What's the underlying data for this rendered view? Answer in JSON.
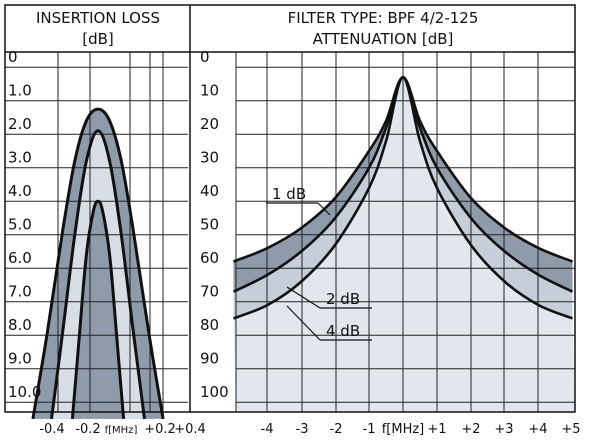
{
  "chart_data": [
    {
      "type": "area",
      "title": "INSERTION LOSS",
      "ylabel_unit": "[dB]",
      "xlabel": "f[MHz]",
      "yticks": [
        "0",
        "1.0",
        "2.0",
        "3.0",
        "4.0",
        "5.0",
        "6.0",
        "7.0",
        "8.0",
        "9.0",
        "10.0"
      ],
      "xticks": [
        "-0.4",
        "-0.2",
        "+0.2",
        "+0.4"
      ],
      "ylim": [
        0,
        10.5
      ],
      "xlim": [
        -0.4,
        0.4
      ],
      "y_inverted": true,
      "series": [
        {
          "x": [
            -0.28,
            -0.22,
            -0.15,
            -0.1,
            -0.05,
            0.0,
            0.05,
            0.1,
            0.15,
            0.22,
            0.28
          ],
          "y": [
            10.5,
            8.0,
            4.8,
            2.8,
            1.6,
            1.25,
            1.6,
            2.8,
            4.8,
            8.0,
            10.5
          ]
        },
        {
          "x": [
            -0.2,
            -0.15,
            -0.1,
            -0.05,
            0.0,
            0.05,
            0.1,
            0.15,
            0.2
          ],
          "y": [
            10.5,
            7.8,
            5.0,
            2.8,
            1.9,
            2.8,
            5.0,
            7.8,
            10.5
          ]
        },
        {
          "x": [
            -0.11,
            -0.08,
            -0.05,
            -0.02,
            0.0,
            0.02,
            0.05,
            0.08,
            0.11
          ],
          "y": [
            10.5,
            8.0,
            5.6,
            4.3,
            4.0,
            4.3,
            5.6,
            8.0,
            10.5
          ]
        }
      ]
    },
    {
      "type": "area",
      "title": "FILTER TYPE: BPF 4/2-125",
      "ylabel": "ATTENUATION [dB]",
      "xlabel": "f[MHz]",
      "yticks": [
        "0",
        "10",
        "20",
        "30",
        "40",
        "50",
        "60",
        "70",
        "80",
        "90",
        "100"
      ],
      "xticks": [
        "-4",
        "-3",
        "-2",
        "-1",
        "+1",
        "+2",
        "+3",
        "+4",
        "+5"
      ],
      "ylim": [
        0,
        100
      ],
      "xlim": [
        -5,
        5
      ],
      "y_inverted": true,
      "series": [
        {
          "name": "1 dB",
          "x": [
            -5,
            -4,
            -3,
            -2,
            -1,
            -0.5,
            0,
            0.5,
            1,
            2,
            3,
            4,
            5
          ],
          "y": [
            58,
            54,
            48,
            39,
            25,
            16,
            3,
            16,
            25,
            39,
            48,
            54,
            58
          ]
        },
        {
          "name": "2 dB",
          "x": [
            -5,
            -4,
            -3,
            -2,
            -1,
            -0.5,
            0,
            0.5,
            1,
            2,
            3,
            4,
            5
          ],
          "y": [
            67,
            62,
            55,
            45,
            30,
            18,
            3,
            18,
            30,
            45,
            55,
            62,
            67
          ]
        },
        {
          "name": "4 dB",
          "x": [
            -5,
            -4,
            -3,
            -2,
            -1,
            -0.5,
            0,
            0.5,
            1,
            2,
            3,
            4,
            5
          ],
          "y": [
            75,
            71,
            64,
            53,
            36,
            22,
            3,
            22,
            36,
            53,
            64,
            71,
            75
          ]
        }
      ]
    }
  ]
}
